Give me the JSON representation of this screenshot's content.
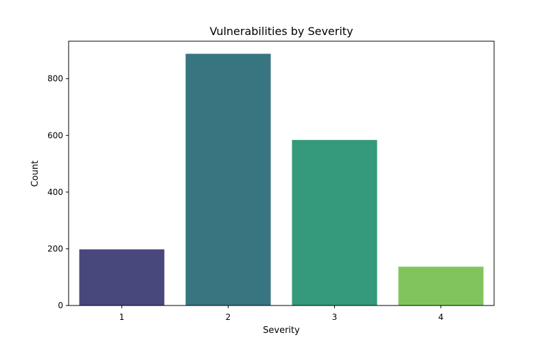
{
  "chart_data": {
    "type": "bar",
    "title": "Vulnerabilities by Severity",
    "xlabel": "Severity",
    "ylabel": "Count",
    "categories": [
      "1",
      "2",
      "3",
      "4"
    ],
    "values": [
      198,
      888,
      584,
      137
    ],
    "colors": [
      "#48487c",
      "#377681",
      "#35997b",
      "#81c45d"
    ],
    "ylim": [
      0,
      932.4
    ],
    "yticks": [
      0,
      200,
      400,
      600,
      800
    ],
    "grid": false
  }
}
